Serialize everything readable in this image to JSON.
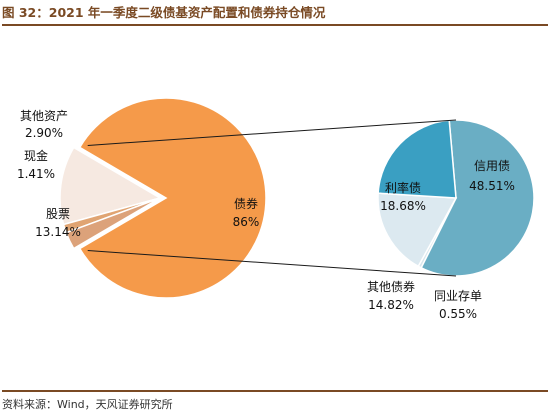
{
  "header": {
    "title": "图 32：2021 年一季度二级债基资产配置和债券持仓情况"
  },
  "footer": {
    "source": "资料来源：Wind，天风证券研究所"
  },
  "chart_data": [
    {
      "type": "pie",
      "categories": [
        "债券",
        "股票",
        "现金",
        "其他资产"
      ],
      "values": [
        86,
        13.14,
        1.41,
        2.9
      ],
      "value_labels": [
        "86%",
        "13.14%",
        "1.41%",
        "2.90%"
      ],
      "colors": [
        "#f59a4a",
        "#f6e9e1",
        "#e0a472",
        "#dca27a"
      ],
      "exploded": "债券"
    },
    {
      "type": "pie",
      "categories": [
        "信用债",
        "同业存单",
        "其他债券",
        "利率债"
      ],
      "values": [
        48.51,
        0.55,
        14.82,
        18.68
      ],
      "value_labels": [
        "48.51%",
        "0.55%",
        "14.82%",
        "18.68%"
      ],
      "colors": [
        "#6aaec4",
        "#d8e6ec",
        "#dce9f0",
        "#3a9fc2"
      ]
    }
  ]
}
